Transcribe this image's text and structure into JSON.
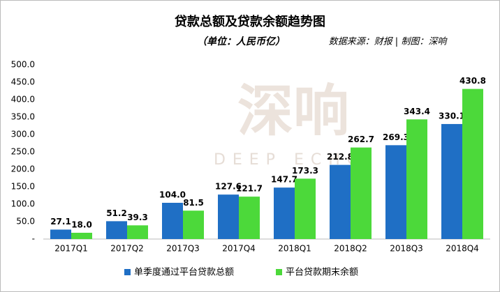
{
  "chart_data": {
    "type": "bar",
    "title": "贷款总额及贷款余额趋势图",
    "subtitle": "（单位：人民币亿）",
    "source": "数据来源：财报 | 制图：深响",
    "watermark": "深响",
    "watermark_sub": "DEEP ECHO",
    "categories": [
      "2017Q1",
      "2017Q2",
      "2017Q3",
      "2017Q4",
      "2018Q1",
      "2018Q2",
      "2018Q3",
      "2018Q4"
    ],
    "series": [
      {
        "name": "单季度通过平台贷款总额",
        "color": "#1f6fc5",
        "values": [
          27.1,
          51.2,
          104.0,
          127.6,
          147.7,
          212.8,
          269.3,
          330.1
        ],
        "value_labels": [
          "27.1",
          "51.2",
          "104.0",
          "127.6",
          "147.7",
          "212.8",
          "269.3",
          "330.1"
        ]
      },
      {
        "name": "平台贷款期末余额",
        "color": "#4cd93a",
        "values": [
          18.0,
          39.3,
          81.5,
          121.7,
          173.3,
          262.7,
          343.4,
          430.8
        ],
        "value_labels": [
          "18.0",
          "39.3",
          "81.5",
          "121.7",
          "173.3",
          "262.7",
          "343.4",
          "430.8"
        ]
      }
    ],
    "ylim": [
      0,
      500
    ],
    "yticks": [
      {
        "value": 0,
        "label": "-"
      },
      {
        "value": 50,
        "label": "50.0"
      },
      {
        "value": 100,
        "label": "100.0"
      },
      {
        "value": 150,
        "label": "150.0"
      },
      {
        "value": 200,
        "label": "200.0"
      },
      {
        "value": 250,
        "label": "250.0"
      },
      {
        "value": 300,
        "label": "300.0"
      },
      {
        "value": 350,
        "label": "350.0"
      },
      {
        "value": 400,
        "label": "400.0"
      },
      {
        "value": 450,
        "label": "450.0"
      },
      {
        "value": 500,
        "label": "500.0"
      }
    ],
    "grid": false
  }
}
